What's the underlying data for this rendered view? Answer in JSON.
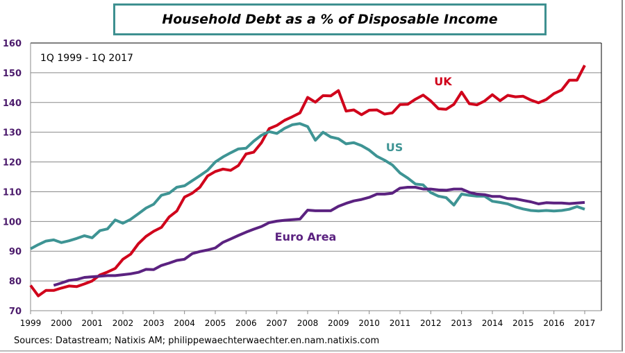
{
  "chart_data": {
    "type": "line",
    "title": "Household Debt as a % of Disposable Income",
    "subtitle": "1Q 1999 - 1Q 2017",
    "source": "Sources: Datastream;  Natixis AM; philippewaechterwaechter.en.nam.natixis.com",
    "xlabel": "",
    "ylabel": "",
    "xlim": [
      1999,
      2017
    ],
    "ylim": [
      70,
      160
    ],
    "x_ticks": [
      "1999",
      "2000",
      "2001",
      "2002",
      "2003",
      "2004",
      "2005",
      "2006",
      "2007",
      "2008",
      "2009",
      "2010",
      "2011",
      "2012",
      "2013",
      "2014",
      "2015",
      "2016",
      "2017"
    ],
    "y_ticks": [
      "70",
      "80",
      "90",
      "100",
      "110",
      "120",
      "130",
      "140",
      "150",
      "160"
    ],
    "grid": "horizontal",
    "frequency": "quarterly",
    "series": [
      {
        "name": "UK",
        "color": "#d0021b",
        "start": 1999.0,
        "values": [
          78.5,
          75,
          76.8,
          76.8,
          77.6,
          78.3,
          78.1,
          79.0,
          80.0,
          82.0,
          83.0,
          84.2,
          87.3,
          89.0,
          92.5,
          95.0,
          96.7,
          98.0,
          101.5,
          103.5,
          108.2,
          109.5,
          111.5,
          115.3,
          116.8,
          117.6,
          117.2,
          118.8,
          122.7,
          123.3,
          126.5,
          131.2,
          132.3,
          134.0,
          135.2,
          136.5,
          141.7,
          140.1,
          142.3,
          142.2,
          144.0,
          137.1,
          137.5,
          135.9,
          137.4,
          137.5,
          136.1,
          136.5,
          139.3,
          139.4,
          141.1,
          142.5,
          140.5,
          137.9,
          137.7,
          139.4,
          143.5,
          139.6,
          139.2,
          140.5,
          142.6,
          140.6,
          142.4,
          141.9,
          142.1,
          140.8,
          139.9,
          141.0,
          143.0,
          144.2,
          147.5,
          147.5,
          152.5
        ]
      },
      {
        "name": "US",
        "color": "#3e9494",
        "start": 1999.0,
        "values": [
          90.8,
          92.2,
          93.4,
          93.8,
          92.9,
          93.5,
          94.3,
          95.2,
          94.5,
          96.9,
          97.5,
          100.5,
          99.4,
          100.7,
          102.6,
          104.5,
          105.8,
          108.8,
          109.5,
          111.5,
          112.0,
          113.7,
          115.4,
          117.2,
          120.0,
          121.7,
          123.1,
          124.4,
          124.6,
          127.0,
          129.0,
          130.2,
          129.6,
          131.3,
          132.5,
          132.9,
          131.9,
          127.3,
          130.0,
          128.4,
          127.8,
          126.1,
          126.5,
          125.5,
          124.0,
          121.9,
          120.6,
          119.0,
          116.3,
          114.6,
          112.6,
          112.3,
          109.7,
          108.5,
          108.0,
          105.5,
          109.2,
          108.8,
          108.5,
          108.5,
          106.8,
          106.4,
          105.9,
          104.9,
          104.2,
          103.7,
          103.5,
          103.7,
          103.5,
          103.7,
          104.1,
          105.0,
          104.1
        ]
      },
      {
        "name": "Euro Area",
        "color": "#5b2280",
        "start": 1999.75,
        "values": [
          78.5,
          79.3,
          80.2,
          80.5,
          81.2,
          81.4,
          81.6,
          81.8,
          81.8,
          82.1,
          82.4,
          82.9,
          83.9,
          83.8,
          85.2,
          86.0,
          86.9,
          87.3,
          89.2,
          89.9,
          90.4,
          91.1,
          93.0,
          94.1,
          95.3,
          96.4,
          97.4,
          98.3,
          99.6,
          100.1,
          100.4,
          100.6,
          100.8,
          103.8,
          103.6,
          103.6,
          103.6,
          105.1,
          106.1,
          106.9,
          107.4,
          108.1,
          109.2,
          109.2,
          109.5,
          111.2,
          111.5,
          111.5,
          110.9,
          110.9,
          110.6,
          110.5,
          110.9,
          110.9,
          109.8,
          109.2,
          109.0,
          108.4,
          108.4,
          107.7,
          107.6,
          107.1,
          106.6,
          105.9,
          106.3,
          106.2,
          106.2,
          106.0,
          106.2,
          106.4
        ]
      }
    ]
  }
}
